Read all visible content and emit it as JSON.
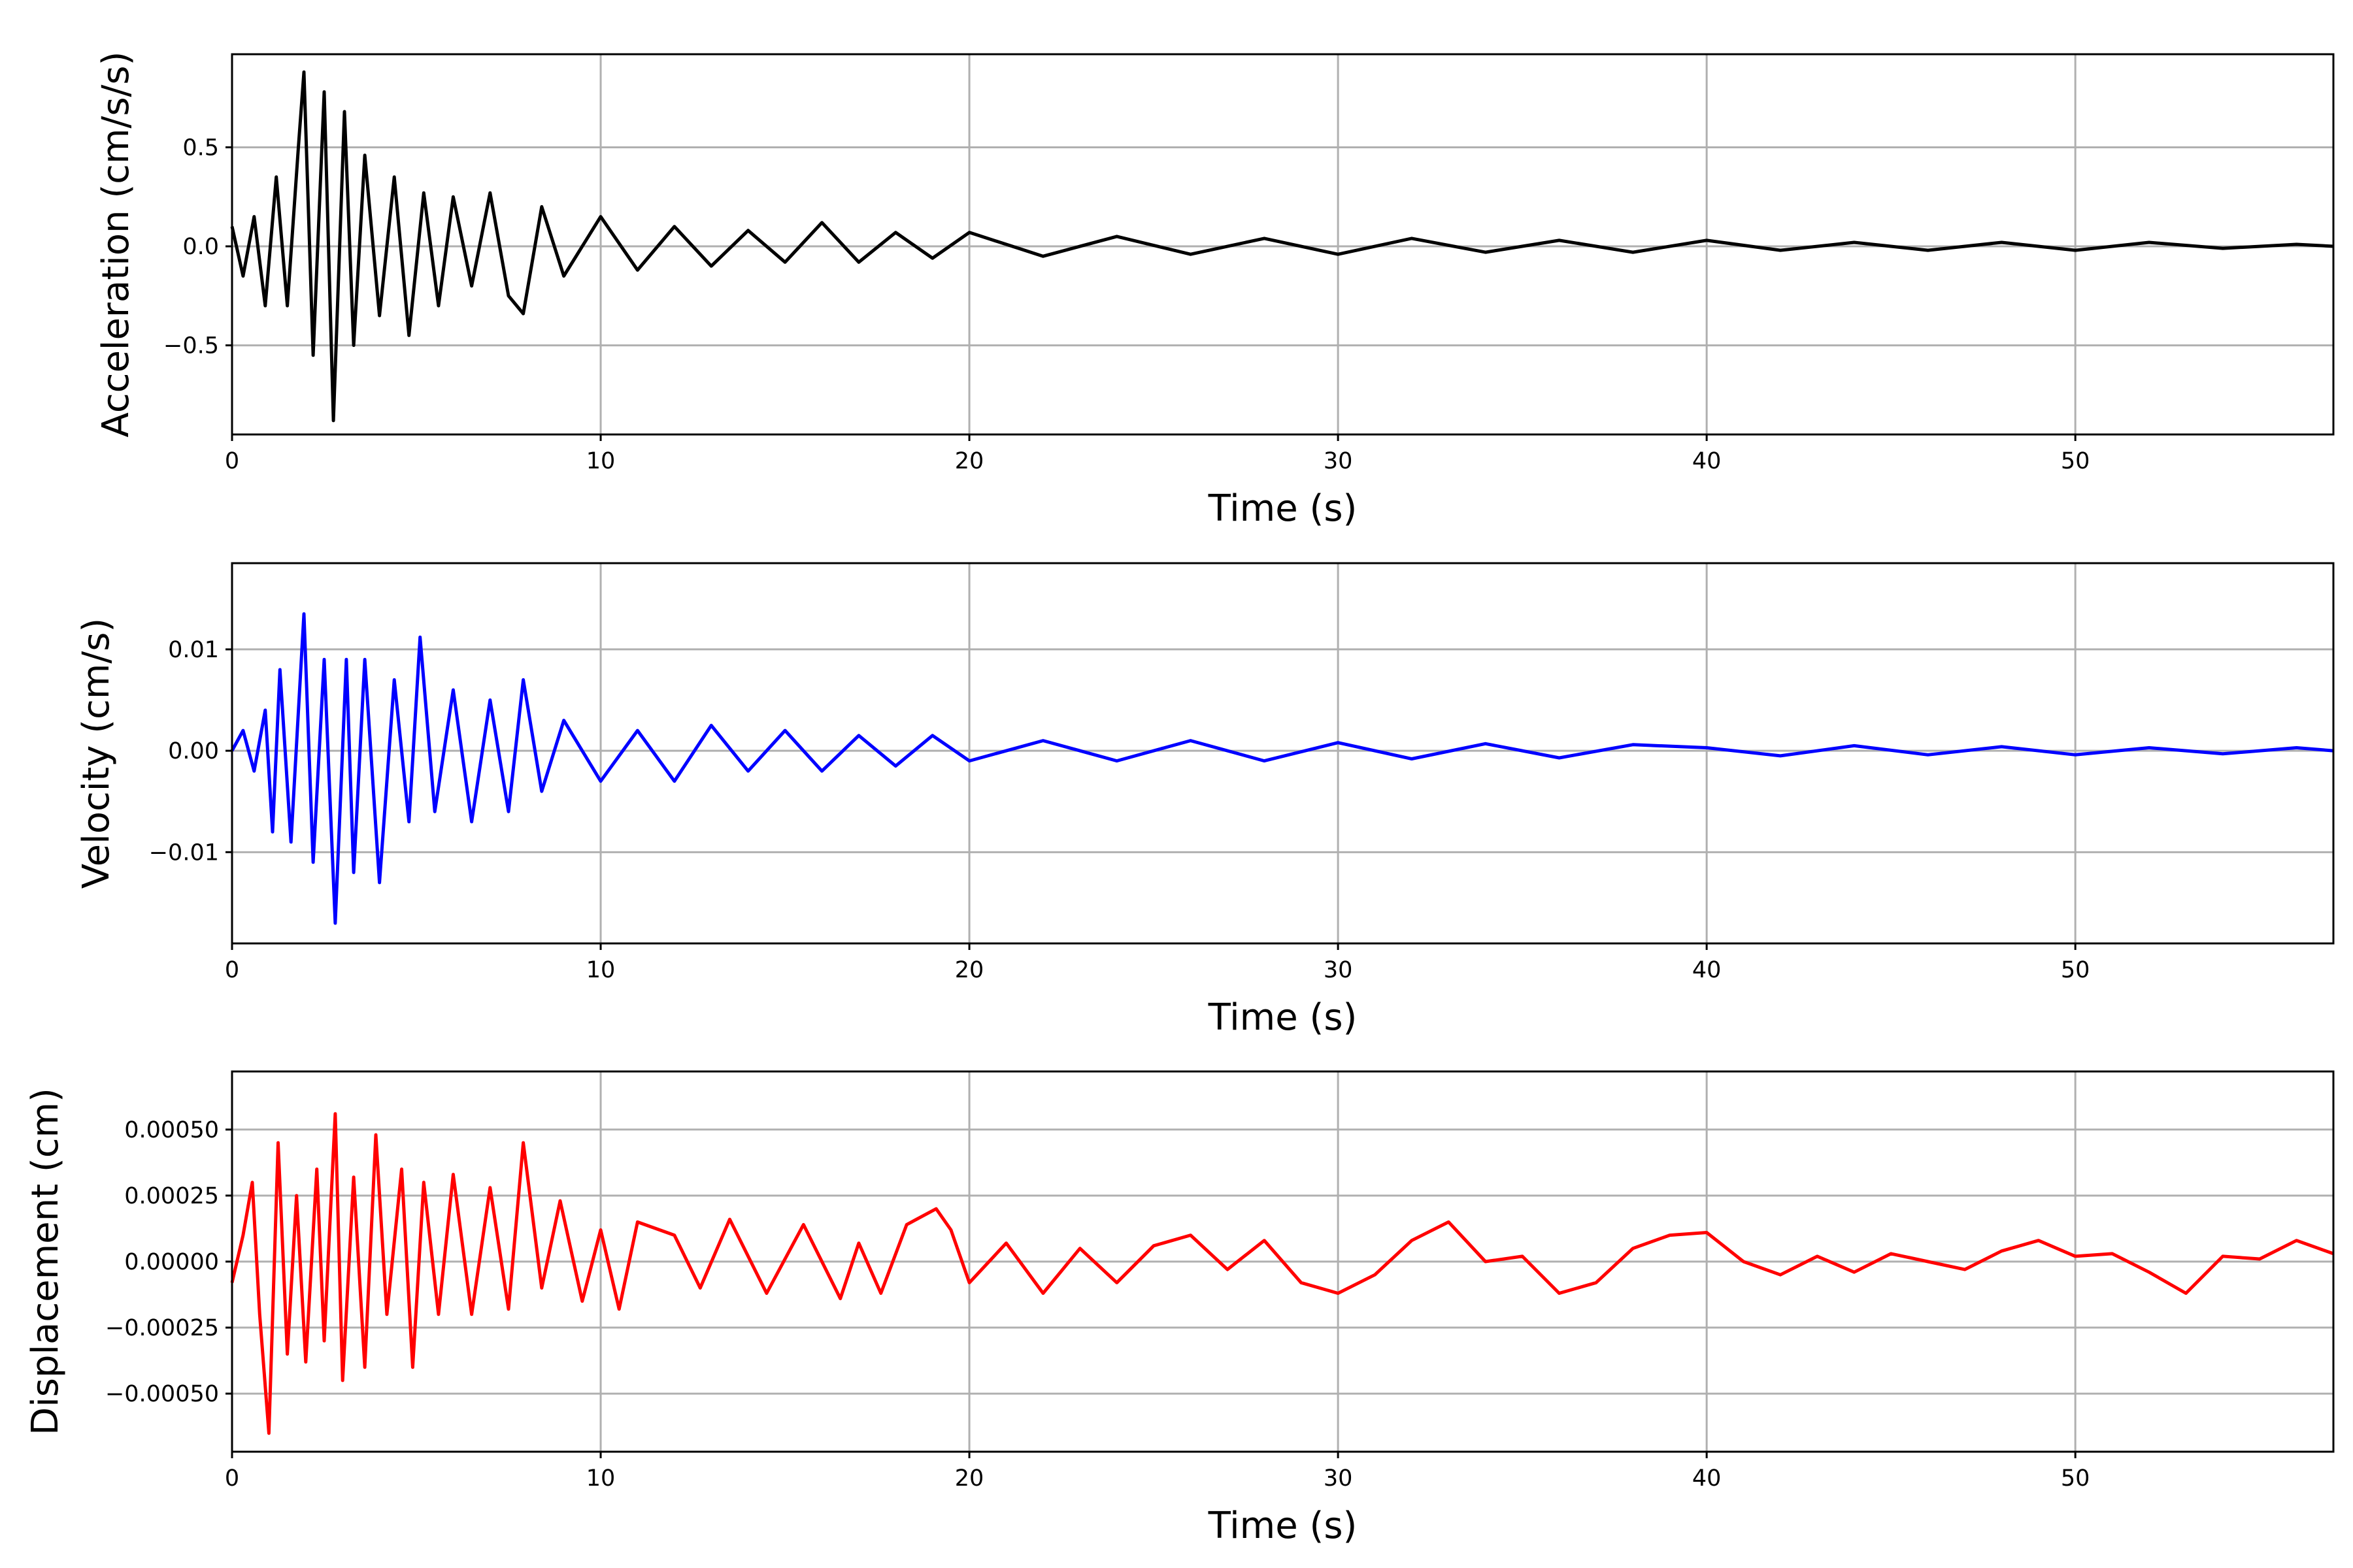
{
  "chart_data": [
    {
      "type": "line",
      "ylabel": "Acceleration (cm/s/s)",
      "xlabel": "Time (s)",
      "xlim": [
        0,
        57
      ],
      "ylim": [
        -0.95,
        0.97
      ],
      "xticks": [
        0,
        10,
        20,
        30,
        40,
        50
      ],
      "xtick_labels": [
        "0",
        "10",
        "20",
        "30",
        "40",
        "50"
      ],
      "yticks": [
        -0.5,
        0.0,
        0.5
      ],
      "ytick_labels": [
        "−0.5",
        "0.0",
        "0.5"
      ],
      "grid": true,
      "series": [
        {
          "color": "#000000",
          "x": [
            0,
            0.3,
            0.6,
            0.9,
            1.2,
            1.5,
            1.8,
            1.95,
            2.2,
            2.5,
            2.75,
            3.05,
            3.3,
            3.6,
            4.0,
            4.4,
            4.8,
            5.2,
            5.6,
            6.0,
            6.5,
            7.0,
            7.5,
            7.9,
            8.4,
            9.0,
            10.0,
            11.0,
            12.0,
            13.0,
            14.0,
            15.0,
            16.0,
            17.0,
            18.0,
            19.0,
            20.0,
            22.0,
            24.0,
            26.0,
            28.0,
            30.0,
            32.0,
            34.0,
            36.0,
            38.0,
            40.0,
            42.0,
            44.0,
            46.0,
            48.0,
            50.0,
            52.0,
            54.0,
            56.0,
            57.0
          ],
          "y": [
            0.1,
            -0.15,
            0.15,
            -0.3,
            0.35,
            -0.3,
            0.5,
            0.88,
            -0.55,
            0.78,
            -0.88,
            0.68,
            -0.5,
            0.46,
            -0.35,
            0.35,
            -0.45,
            0.27,
            -0.3,
            0.25,
            -0.2,
            0.27,
            -0.25,
            -0.34,
            0.2,
            -0.15,
            0.15,
            -0.12,
            0.1,
            -0.1,
            0.08,
            -0.08,
            0.12,
            -0.08,
            0.07,
            -0.06,
            0.07,
            -0.05,
            0.05,
            -0.04,
            0.04,
            -0.04,
            0.04,
            -0.03,
            0.03,
            -0.03,
            0.03,
            -0.02,
            0.02,
            -0.02,
            0.02,
            -0.02,
            0.02,
            -0.01,
            0.01,
            0.0
          ]
        }
      ]
    },
    {
      "type": "line",
      "ylabel": "Velocity (cm/s)",
      "xlabel": "Time (s)",
      "xlim": [
        0,
        57
      ],
      "ylim": [
        -0.019,
        0.0185
      ],
      "xticks": [
        0,
        10,
        20,
        30,
        40,
        50
      ],
      "xtick_labels": [
        "0",
        "10",
        "20",
        "30",
        "40",
        "50"
      ],
      "yticks": [
        -0.01,
        0.0,
        0.01
      ],
      "ytick_labels": [
        "−0.01",
        "0.00",
        "0.01"
      ],
      "grid": true,
      "series": [
        {
          "color": "#0000ff",
          "x": [
            0,
            0.3,
            0.6,
            0.9,
            1.1,
            1.3,
            1.6,
            1.95,
            2.2,
            2.5,
            2.8,
            3.1,
            3.3,
            3.6,
            4.0,
            4.4,
            4.8,
            5.1,
            5.5,
            6.0,
            6.5,
            7.0,
            7.5,
            7.9,
            8.4,
            9.0,
            10.0,
            11.0,
            12.0,
            13.0,
            14.0,
            15.0,
            16.0,
            17.0,
            18.0,
            19.0,
            20.0,
            22.0,
            24.0,
            26.0,
            28.0,
            30.0,
            32.0,
            34.0,
            36.0,
            38.0,
            40.0,
            42.0,
            44.0,
            46.0,
            48.0,
            50.0,
            52.0,
            54.0,
            56.0,
            57.0
          ],
          "y": [
            0.0,
            0.002,
            -0.002,
            0.004,
            -0.008,
            0.008,
            -0.009,
            0.0135,
            -0.011,
            0.009,
            -0.017,
            0.009,
            -0.012,
            0.009,
            -0.013,
            0.007,
            -0.007,
            0.0112,
            -0.006,
            0.006,
            -0.007,
            0.005,
            -0.006,
            0.007,
            -0.004,
            0.003,
            -0.003,
            0.002,
            -0.003,
            0.0025,
            -0.002,
            0.002,
            -0.002,
            0.0015,
            -0.0015,
            0.0015,
            -0.001,
            0.001,
            -0.001,
            0.001,
            -0.001,
            0.0008,
            -0.0008,
            0.0007,
            -0.0007,
            0.0006,
            0.0003,
            -0.0005,
            0.0005,
            -0.0004,
            0.0004,
            -0.0004,
            0.0003,
            -0.0003,
            0.0003,
            0.0
          ]
        }
      ]
    },
    {
      "type": "line",
      "ylabel": "Displacement (cm)",
      "xlabel": "Time (s)",
      "xlim": [
        0,
        57
      ],
      "ylim": [
        -0.00072,
        0.00072
      ],
      "xticks": [
        0,
        10,
        20,
        30,
        40,
        50
      ],
      "xtick_labels": [
        "0",
        "10",
        "20",
        "30",
        "40",
        "50"
      ],
      "yticks": [
        -0.0005,
        -0.00025,
        0.0,
        0.00025,
        0.0005
      ],
      "ytick_labels": [
        "−0.00050",
        "−0.00025",
        "0.00000",
        "0.00025",
        "0.00050"
      ],
      "grid": true,
      "series": [
        {
          "color": "#ff0000",
          "x": [
            0,
            0.3,
            0.55,
            0.75,
            1.0,
            1.25,
            1.5,
            1.75,
            2.0,
            2.3,
            2.5,
            2.8,
            3.0,
            3.3,
            3.6,
            3.9,
            4.2,
            4.6,
            4.9,
            5.2,
            5.6,
            6.0,
            6.5,
            7.0,
            7.5,
            7.9,
            8.4,
            8.9,
            9.5,
            10.0,
            10.5,
            11.0,
            12.0,
            12.7,
            13.5,
            14.5,
            15.5,
            16.5,
            17.0,
            17.6,
            18.3,
            19.1,
            19.5,
            20.0,
            21.0,
            22.0,
            23.0,
            24.0,
            25.0,
            26.0,
            27.0,
            28.0,
            29.0,
            30.0,
            31.0,
            32.0,
            33.0,
            34.0,
            35.0,
            36.0,
            37.0,
            38.0,
            39.0,
            40.0,
            41.0,
            42.0,
            43.0,
            44.0,
            45.0,
            46.0,
            47.0,
            48.0,
            49.0,
            50.0,
            51.0,
            52.0,
            53.0,
            54.0,
            55.0,
            56.0,
            57.0
          ],
          "y": [
            -8e-05,
            0.0001,
            0.0003,
            -0.0002,
            -0.00065,
            0.00045,
            -0.00035,
            0.00025,
            -0.00038,
            0.00035,
            -0.0003,
            0.00056,
            -0.00045,
            0.00032,
            -0.0004,
            0.00048,
            -0.0002,
            0.00035,
            -0.0004,
            0.0003,
            -0.0002,
            0.00033,
            -0.0002,
            0.00028,
            -0.00018,
            0.00045,
            -0.0001,
            0.00023,
            -0.00015,
            0.00012,
            -0.00018,
            0.00015,
            0.0001,
            -0.0001,
            0.00016,
            -0.00012,
            0.00014,
            -0.00014,
            7e-05,
            -0.00012,
            0.00014,
            0.0002,
            0.00012,
            -8e-05,
            7e-05,
            -0.00012,
            5e-05,
            -8e-05,
            6e-05,
            0.0001,
            -3e-05,
            8e-05,
            -8e-05,
            -0.00012,
            -5e-05,
            8e-05,
            0.00015,
            0.0,
            2e-05,
            -0.00012,
            -8e-05,
            5e-05,
            0.0001,
            0.00011,
            0.0,
            -5e-05,
            2e-05,
            -4e-05,
            3e-05,
            0.0,
            -3e-05,
            4e-05,
            8e-05,
            2e-05,
            3e-05,
            -4e-05,
            -0.00012,
            2e-05,
            1e-05,
            8e-05,
            3e-05
          ]
        }
      ]
    }
  ]
}
